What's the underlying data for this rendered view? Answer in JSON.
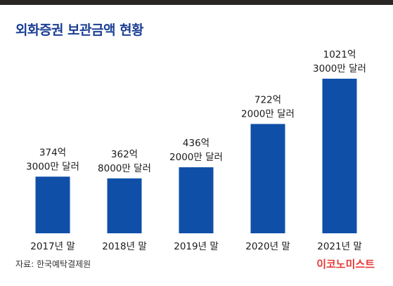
{
  "header": {
    "title": "외화증권 보관금액 현황"
  },
  "footer": {
    "source": "자료: 한국예탁결제원",
    "brand": "이코노미스트"
  },
  "colors": {
    "bar": "#0f4fa8",
    "title": "#1c3f94",
    "brand": "#e53935"
  },
  "chart_data": {
    "type": "bar",
    "categories": [
      "2017년 말",
      "2018년 말",
      "2019년 말",
      "2020년 말",
      "2021년 말"
    ],
    "values": [
      374.3,
      362.8,
      436.2,
      722.2,
      1021.3
    ],
    "value_labels": [
      [
        "374억",
        "3000만 달러"
      ],
      [
        "362억",
        "8000만 달러"
      ],
      [
        "436억",
        "2000만 달러"
      ],
      [
        "722억",
        "2000만 달러"
      ],
      [
        "1021억",
        "3000만 달러"
      ]
    ],
    "unit": "억 달러",
    "ylim": [
      0,
      1021.3
    ],
    "grid": false,
    "title": "외화증권 보관금액 현황"
  }
}
